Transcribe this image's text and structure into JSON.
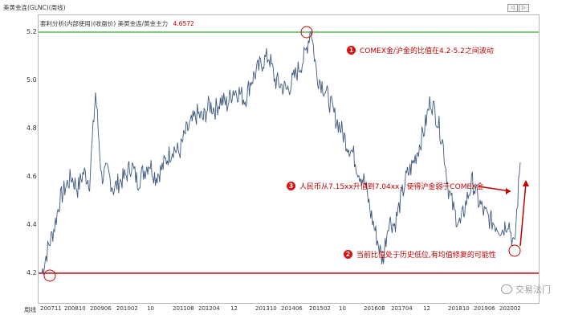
{
  "window": {
    "title": "美黄金连(GLNC)(周线)",
    "controls": [
      "◁",
      "▷"
    ]
  },
  "indicator": {
    "label": "套利分析(内部使用)(收盘价) 美黄金连/黄金主力",
    "value": "4.6572"
  },
  "axis": {
    "period_label": "周线",
    "y_ticks": [
      "5.2",
      "5.0",
      "4.8",
      "4.6",
      "4.4",
      "4.2"
    ],
    "x_ticks": [
      "200711",
      "200810",
      "200906",
      "201002",
      "10",
      "201108",
      "201204",
      "12",
      "201310",
      "201406",
      "201502",
      "10",
      "201608",
      "201704",
      "12",
      "201810",
      "201906",
      "202002"
    ]
  },
  "annotations": [
    {
      "num": "1",
      "text": "COMEX金/沪金的比值在4.2-5.2之间波动"
    },
    {
      "num": "3",
      "text": "人民币从7.15xx升值到7.04xx，使得沪金弱于COMEX金"
    },
    {
      "num": "2",
      "text": "当前比值处于历史低位,有均值修复的可能性"
    }
  ],
  "watermark": "交易法门",
  "colors": {
    "upper_line": "#33aa33",
    "lower_line": "#cc1111",
    "series": "#3d5a80",
    "annotation": "#c00000"
  },
  "chart_data": {
    "type": "line",
    "ylim": [
      4.1,
      5.3
    ],
    "reference_lines": [
      {
        "y": 5.2,
        "color": "#33aa33"
      },
      {
        "y": 4.2,
        "color": "#cc1111"
      }
    ],
    "series": [
      {
        "values": [
          4.2,
          4.3,
          4.38,
          4.5,
          4.56,
          4.6,
          4.55,
          4.62,
          4.58,
          4.95,
          4.6,
          4.62,
          4.55,
          4.58,
          4.6,
          4.65,
          4.58,
          4.62,
          4.66,
          4.6,
          4.63,
          4.68,
          4.72,
          4.7,
          4.78,
          4.82,
          4.86,
          4.84,
          4.9,
          4.88,
          4.92,
          4.9,
          4.96,
          4.95,
          4.92,
          5.0,
          5.04,
          5.08,
          5.1,
          5.0,
          4.98,
          4.96,
          5.0,
          5.05,
          5.1,
          5.22,
          5.02,
          4.98,
          4.92,
          4.85,
          4.8,
          4.74,
          4.7,
          4.62,
          4.58,
          4.45,
          4.35,
          4.25,
          4.42,
          4.4,
          4.5,
          4.6,
          4.65,
          4.72,
          4.8,
          4.92,
          4.85,
          4.75,
          4.55,
          4.45,
          4.4,
          4.5,
          4.58,
          4.5,
          4.45,
          4.42,
          4.4,
          4.38,
          4.42,
          4.3,
          4.66
        ]
      }
    ]
  }
}
